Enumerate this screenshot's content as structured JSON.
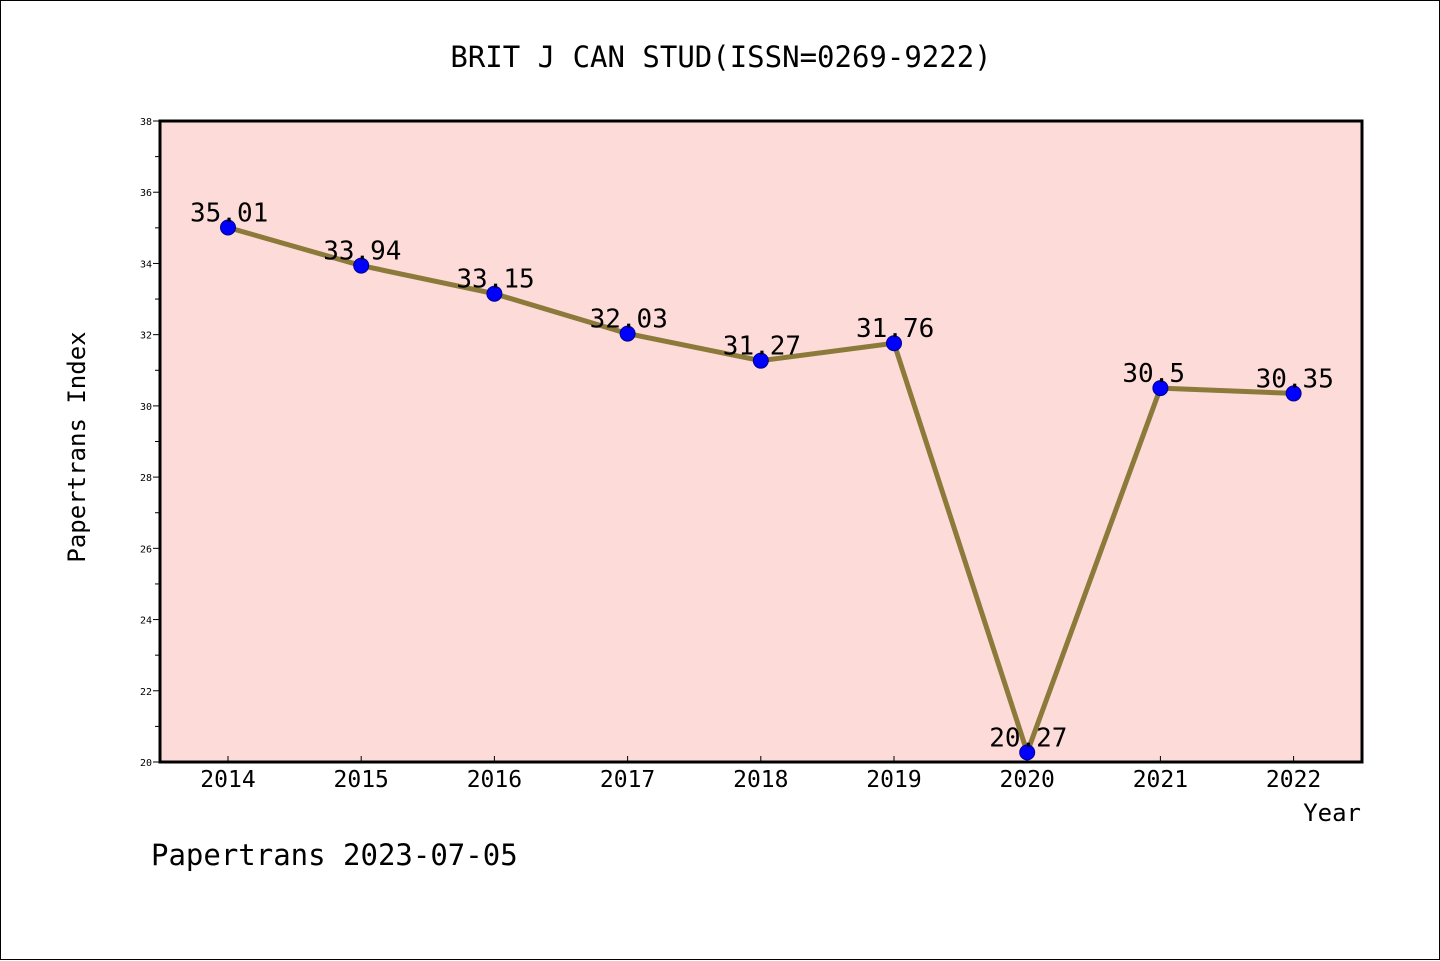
{
  "chart_data": {
    "type": "line",
    "title": "BRIT J CAN STUD(ISSN=0269-9222)",
    "xlabel": "Year",
    "ylabel": "Papertrans Index",
    "categories": [
      "2014",
      "2015",
      "2016",
      "2017",
      "2018",
      "2019",
      "2020",
      "2021",
      "2022"
    ],
    "series": [
      {
        "values": [
          35.01,
          33.94,
          33.15,
          32.03,
          31.27,
          31.76,
          20.27,
          30.5,
          30.35
        ]
      }
    ],
    "data_labels": [
      "35.01",
      "33.94",
      "33.15",
      "32.03",
      "31.27",
      "31.76",
      "20.27",
      "30.5",
      "30.35"
    ],
    "ylim": [
      20,
      38
    ],
    "yticks": [
      20,
      22,
      24,
      26,
      28,
      30,
      32,
      34,
      36,
      38
    ],
    "grid": false,
    "colors": {
      "plot_background": "#fddbd8",
      "line": "#8b7a3a",
      "marker": "#0000ff"
    }
  },
  "footer": "Papertrans 2023-07-05"
}
